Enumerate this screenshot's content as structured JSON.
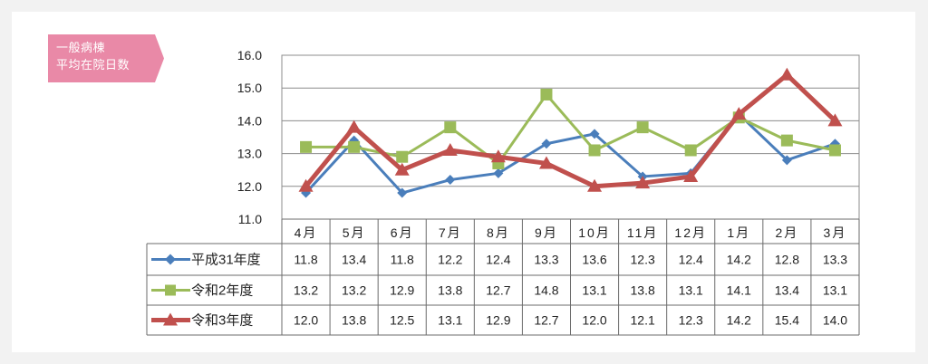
{
  "badge": {
    "line1": "一般病棟",
    "line2": "平均在院日数"
  },
  "colors": {
    "badge_fill": "#e989a7",
    "grid": "#8c8c8c",
    "table_line": "#6b6b6b"
  },
  "chart_data": {
    "type": "line",
    "categories": [
      "4月",
      "5月",
      "6月",
      "7月",
      "8月",
      "9月",
      "10月",
      "11月",
      "12月",
      "1月",
      "2月",
      "3月"
    ],
    "ylim": [
      11.0,
      16.0
    ],
    "yticks": [
      "11.0",
      "12.0",
      "13.0",
      "14.0",
      "15.0",
      "16.0"
    ],
    "grid": true,
    "legend": "data-table-left",
    "series": [
      {
        "name": "平成31年度",
        "color": "#4a7ebb",
        "marker": "diamond",
        "values": [
          11.8,
          13.4,
          11.8,
          12.2,
          12.4,
          13.3,
          13.6,
          12.3,
          12.4,
          14.2,
          12.8,
          13.3
        ],
        "labels": [
          "11.8",
          "13.4",
          "11.8",
          "12.2",
          "12.4",
          "13.3",
          "13.6",
          "12.3",
          "12.4",
          "14.2",
          "12.8",
          "13.3"
        ]
      },
      {
        "name": "令和2年度",
        "color": "#9bbb59",
        "marker": "square",
        "values": [
          13.2,
          13.2,
          12.9,
          13.8,
          12.7,
          14.8,
          13.1,
          13.8,
          13.1,
          14.1,
          13.4,
          13.1
        ],
        "labels": [
          "13.2",
          "13.2",
          "12.9",
          "13.8",
          "12.7",
          "14.8",
          "13.1",
          "13.8",
          "13.1",
          "14.1",
          "13.4",
          "13.1"
        ]
      },
      {
        "name": "令和3年度",
        "color": "#c0504d",
        "marker": "triangle",
        "values": [
          12.0,
          13.8,
          12.5,
          13.1,
          12.9,
          12.7,
          12.0,
          12.1,
          12.3,
          14.2,
          15.4,
          14.0
        ],
        "labels": [
          "12.0",
          "13.8",
          "12.5",
          "13.1",
          "12.9",
          "12.7",
          "12.0",
          "12.1",
          "12.3",
          "14.2",
          "15.4",
          "14.0"
        ]
      }
    ]
  }
}
